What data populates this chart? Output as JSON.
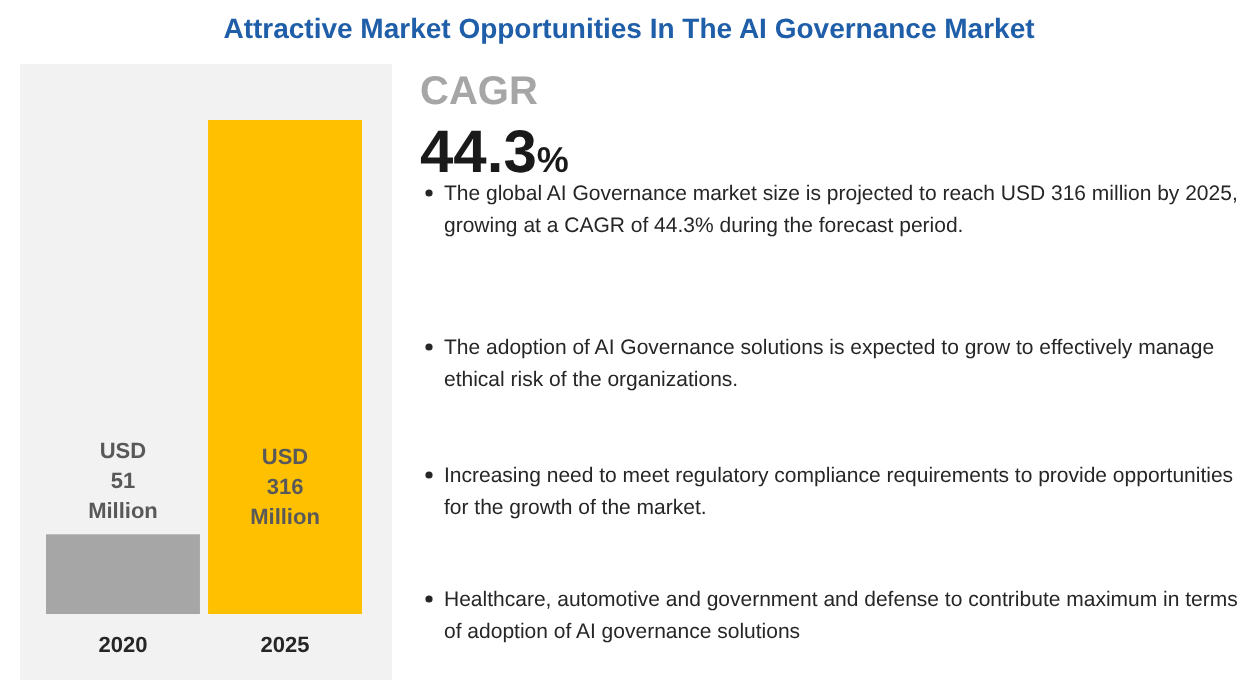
{
  "chart_data": {
    "type": "bar",
    "title": "Attractive Market Opportunities In The AI Governance Market",
    "categories": [
      "2020",
      "2025"
    ],
    "values": [
      51,
      316
    ],
    "colors": [
      "#a6a6a6",
      "#ffc000"
    ],
    "value_labels": [
      "USD 51 Million",
      "USD 316 Million"
    ],
    "annotations": [
      "CAGR",
      "44.3%",
      "The global AI Governance market size is projected to reach USD 316 million by 2025, growing at a CAGR of 44.3% during the forecast period.",
      "The adoption of AI Governance solutions is expected to grow to effectively manage ethical risk of the organizations.",
      "Increasing need to meet regulatory compliance requirements to provide opportunities for the growth of the market.",
      "Healthcare, automotive and government and defense to contribute maximum in terms of adoption of AI governance solutions"
    ]
  }
}
